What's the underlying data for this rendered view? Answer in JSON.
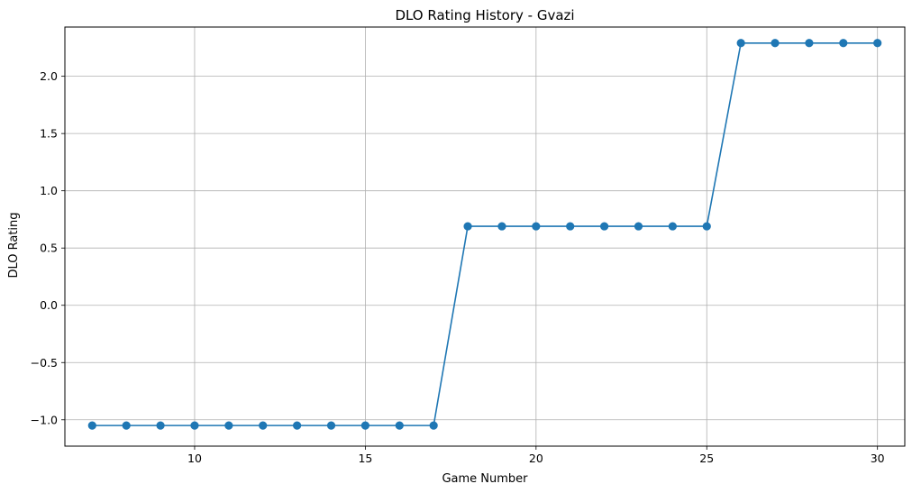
{
  "chart_data": {
    "type": "line",
    "title": "DLO Rating History - Gvazi",
    "xlabel": "Game Number",
    "ylabel": "DLO Rating",
    "xlim": [
      6.2,
      30.8
    ],
    "ylim": [
      -1.23,
      2.43
    ],
    "xticks": [
      10,
      15,
      20,
      25,
      30
    ],
    "yticks": [
      -1.0,
      -0.5,
      0.0,
      0.5,
      1.0,
      1.5,
      2.0
    ],
    "ytick_labels": [
      "−1.0",
      "−0.5",
      "0.0",
      "0.5",
      "1.0",
      "1.5",
      "2.0"
    ],
    "grid": true,
    "marker": "circle",
    "color": "#1f77b4",
    "series": [
      {
        "x": [
          7,
          8,
          9,
          10,
          11,
          12,
          13,
          14,
          15,
          16,
          17,
          18,
          19,
          20,
          21,
          22,
          23,
          24,
          25,
          26,
          27,
          28,
          29,
          30
        ],
        "y": [
          -1.05,
          -1.05,
          -1.05,
          -1.05,
          -1.05,
          -1.05,
          -1.05,
          -1.05,
          -1.05,
          -1.05,
          -1.05,
          0.69,
          0.69,
          0.69,
          0.69,
          0.69,
          0.69,
          0.69,
          0.69,
          2.29,
          2.29,
          2.29,
          2.29,
          2.29
        ]
      }
    ]
  }
}
